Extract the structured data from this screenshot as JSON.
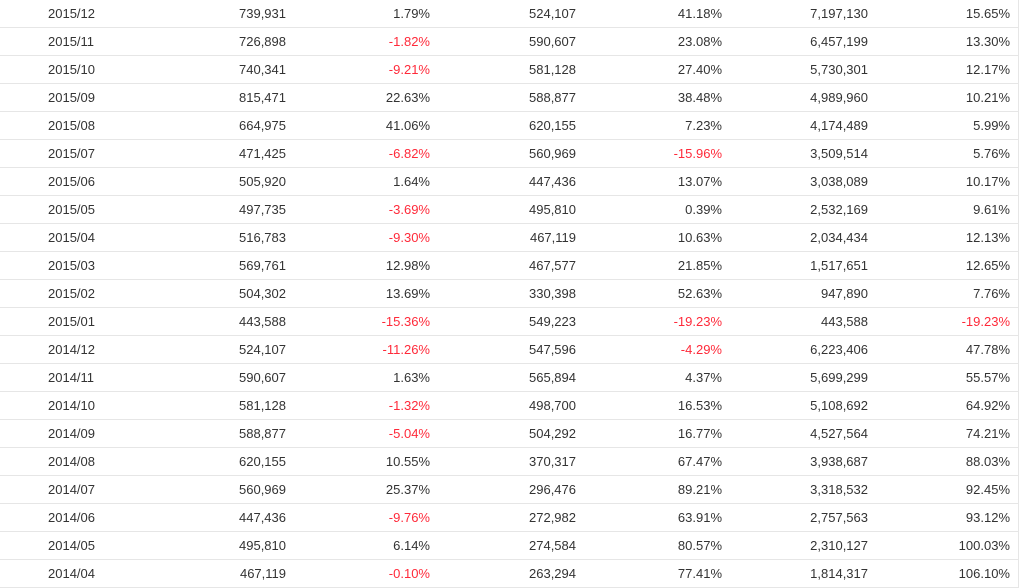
{
  "rows": [
    [
      "2015/12",
      "739,931",
      "1.79%",
      "524,107",
      "41.18%",
      "7,197,130",
      "15.65%"
    ],
    [
      "2015/11",
      "726,898",
      "-1.82%",
      "590,607",
      "23.08%",
      "6,457,199",
      "13.30%"
    ],
    [
      "2015/10",
      "740,341",
      "-9.21%",
      "581,128",
      "27.40%",
      "5,730,301",
      "12.17%"
    ],
    [
      "2015/09",
      "815,471",
      "22.63%",
      "588,877",
      "38.48%",
      "4,989,960",
      "10.21%"
    ],
    [
      "2015/08",
      "664,975",
      "41.06%",
      "620,155",
      "7.23%",
      "4,174,489",
      "5.99%"
    ],
    [
      "2015/07",
      "471,425",
      "-6.82%",
      "560,969",
      "-15.96%",
      "3,509,514",
      "5.76%"
    ],
    [
      "2015/06",
      "505,920",
      "1.64%",
      "447,436",
      "13.07%",
      "3,038,089",
      "10.17%"
    ],
    [
      "2015/05",
      "497,735",
      "-3.69%",
      "495,810",
      "0.39%",
      "2,532,169",
      "9.61%"
    ],
    [
      "2015/04",
      "516,783",
      "-9.30%",
      "467,119",
      "10.63%",
      "2,034,434",
      "12.13%"
    ],
    [
      "2015/03",
      "569,761",
      "12.98%",
      "467,577",
      "21.85%",
      "1,517,651",
      "12.65%"
    ],
    [
      "2015/02",
      "504,302",
      "13.69%",
      "330,398",
      "52.63%",
      "947,890",
      "7.76%"
    ],
    [
      "2015/01",
      "443,588",
      "-15.36%",
      "549,223",
      "-19.23%",
      "443,588",
      "-19.23%"
    ],
    [
      "2014/12",
      "524,107",
      "-11.26%",
      "547,596",
      "-4.29%",
      "6,223,406",
      "47.78%"
    ],
    [
      "2014/11",
      "590,607",
      "1.63%",
      "565,894",
      "4.37%",
      "5,699,299",
      "55.57%"
    ],
    [
      "2014/10",
      "581,128",
      "-1.32%",
      "498,700",
      "16.53%",
      "5,108,692",
      "64.92%"
    ],
    [
      "2014/09",
      "588,877",
      "-5.04%",
      "504,292",
      "16.77%",
      "4,527,564",
      "74.21%"
    ],
    [
      "2014/08",
      "620,155",
      "10.55%",
      "370,317",
      "67.47%",
      "3,938,687",
      "88.03%"
    ],
    [
      "2014/07",
      "560,969",
      "25.37%",
      "296,476",
      "89.21%",
      "3,318,532",
      "92.45%"
    ],
    [
      "2014/06",
      "447,436",
      "-9.76%",
      "272,982",
      "63.91%",
      "2,757,563",
      "93.12%"
    ],
    [
      "2014/05",
      "495,810",
      "6.14%",
      "274,584",
      "80.57%",
      "2,310,127",
      "100.03%"
    ],
    [
      "2014/04",
      "467,119",
      "-0.10%",
      "263,294",
      "77.41%",
      "1,814,317",
      "106.10%"
    ]
  ],
  "colors": {
    "negative": "#ff2a3a",
    "text": "#333333",
    "rule": "#e6e6e6"
  }
}
